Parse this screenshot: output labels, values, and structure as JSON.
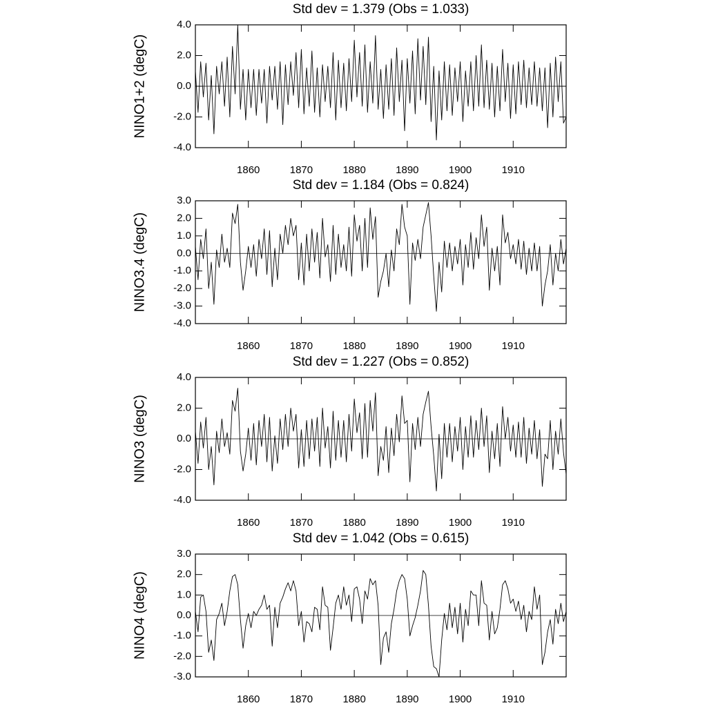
{
  "chart_data": [
    {
      "type": "line",
      "title": "Std dev = 1.379 (Obs = 1.033)",
      "ylabel": "NINO1+2 (degC)",
      "x": [
        1850,
        1850.5,
        1851,
        1851.5,
        1852,
        1852.5,
        1853,
        1853.5,
        1854,
        1854.5,
        1855,
        1855.5,
        1856,
        1856.5,
        1857,
        1857.5,
        1858,
        1858.5,
        1859,
        1859.5,
        1860,
        1860.5,
        1861,
        1861.5,
        1862,
        1862.5,
        1863,
        1863.5,
        1864,
        1864.5,
        1865,
        1865.5,
        1866,
        1866.5,
        1867,
        1867.5,
        1868,
        1868.5,
        1869,
        1869.5,
        1870,
        1870.5,
        1871,
        1871.5,
        1872,
        1872.5,
        1873,
        1873.5,
        1874,
        1874.5,
        1875,
        1875.5,
        1876,
        1876.5,
        1877,
        1877.5,
        1878,
        1878.5,
        1879,
        1879.5,
        1880,
        1880.5,
        1881,
        1881.5,
        1882,
        1882.5,
        1883,
        1883.5,
        1884,
        1884.5,
        1885,
        1885.5,
        1886,
        1886.5,
        1887,
        1887.5,
        1888,
        1888.5,
        1889,
        1889.5,
        1890,
        1890.5,
        1891,
        1891.5,
        1892,
        1892.5,
        1893,
        1893.5,
        1894,
        1894.5,
        1895,
        1895.5,
        1896,
        1896.5,
        1897,
        1897.5,
        1898,
        1898.5,
        1899,
        1899.5,
        1900,
        1900.5,
        1901,
        1901.5,
        1902,
        1902.5,
        1903,
        1903.5,
        1904,
        1904.5,
        1905,
        1905.5,
        1906,
        1906.5,
        1907,
        1907.5,
        1908,
        1908.5,
        1909,
        1909.5,
        1910,
        1910.5,
        1911,
        1911.5,
        1912,
        1912.5,
        1913,
        1913.5,
        1914,
        1914.5,
        1915,
        1915.5,
        1916,
        1916.5,
        1917,
        1917.5,
        1918,
        1918.5,
        1919,
        1919.5,
        1920
      ],
      "values": [
        1.0,
        -1.7,
        1.6,
        -0.7,
        1.5,
        -2.2,
        0.7,
        -3.1,
        1.3,
        -0.5,
        1.6,
        -1.3,
        1.9,
        -2.0,
        2.6,
        -0.5,
        4.0,
        -1.5,
        1.1,
        -2.2,
        1.1,
        -1.4,
        1.1,
        -1.9,
        1.1,
        -1.1,
        1.1,
        -2.4,
        1.3,
        -0.9,
        1.3,
        -1.5,
        1.6,
        -2.5,
        1.4,
        -1.2,
        1.6,
        -0.6,
        2.2,
        -1.4,
        2.4,
        -1.8,
        1.2,
        -1.3,
        2.3,
        -1.7,
        1.2,
        -2.0,
        1.4,
        -1.0,
        1.3,
        -1.4,
        2.2,
        -2.2,
        1.7,
        -1.4,
        1.5,
        -1.6,
        1.8,
        -1.0,
        3.0,
        -0.7,
        2.2,
        -1.3,
        2.7,
        -1.7,
        1.6,
        -1.1,
        3.3,
        -1.5,
        1.1,
        -2.1,
        1.4,
        -1.5,
        1.8,
        -1.9,
        2.5,
        -1.0,
        1.7,
        -2.9,
        1.8,
        -1.1,
        2.3,
        -1.8,
        3.1,
        -0.9,
        2.6,
        -1.2,
        3.2,
        -2.3,
        1.3,
        -3.5,
        1.0,
        -2.2,
        1.6,
        -1.6,
        1.4,
        -1.9,
        1.2,
        -1.0,
        1.6,
        -2.3,
        1.0,
        -1.3,
        1.6,
        -1.6,
        2.0,
        -1.3,
        2.7,
        -1.4,
        1.7,
        -1.5,
        1.5,
        -2.0,
        1.3,
        -1.6,
        2.4,
        -1.0,
        1.5,
        -2.1,
        1.4,
        -1.8,
        1.6,
        -1.2,
        1.7,
        -1.4,
        1.2,
        -1.2,
        1.6,
        -1.3,
        1.2,
        -1.6,
        1.2,
        -2.7,
        1.5,
        -2.0,
        1.9,
        -1.0,
        1.6,
        -2.4,
        -2.0
      ],
      "color": "#000000",
      "xlim": [
        1850,
        1920
      ],
      "xticks": [
        1860,
        1870,
        1880,
        1890,
        1900,
        1910
      ],
      "ylim": [
        -4,
        4
      ],
      "yticks": [
        {
          "value": -4,
          "label": "-4.0"
        },
        {
          "value": -2,
          "label": "-2.0"
        },
        {
          "value": 0,
          "label": "0.0"
        },
        {
          "value": 2,
          "label": "2.0"
        },
        {
          "value": 4,
          "label": "4.0"
        }
      ],
      "zero_line": true
    },
    {
      "type": "line",
      "title": "Std dev = 1.184 (Obs = 0.824)",
      "ylabel": "NINO3.4 (degC)",
      "x": [
        1850,
        1850.5,
        1851,
        1851.5,
        1852,
        1852.5,
        1853,
        1853.5,
        1854,
        1854.5,
        1855,
        1855.5,
        1856,
        1856.5,
        1857,
        1857.5,
        1858,
        1858.5,
        1859,
        1859.5,
        1860,
        1860.5,
        1861,
        1861.5,
        1862,
        1862.5,
        1863,
        1863.5,
        1864,
        1864.5,
        1865,
        1865.5,
        1866,
        1866.5,
        1867,
        1867.5,
        1868,
        1868.5,
        1869,
        1869.5,
        1870,
        1870.5,
        1871,
        1871.5,
        1872,
        1872.5,
        1873,
        1873.5,
        1874,
        1874.5,
        1875,
        1875.5,
        1876,
        1876.5,
        1877,
        1877.5,
        1878,
        1878.5,
        1879,
        1879.5,
        1880,
        1880.5,
        1881,
        1881.5,
        1882,
        1882.5,
        1883,
        1883.5,
        1884,
        1884.5,
        1885,
        1885.5,
        1886,
        1886.5,
        1887,
        1887.5,
        1888,
        1888.5,
        1889,
        1889.5,
        1890,
        1890.5,
        1891,
        1891.5,
        1892,
        1892.5,
        1893,
        1893.5,
        1894,
        1894.5,
        1895,
        1895.5,
        1896,
        1896.5,
        1897,
        1897.5,
        1898,
        1898.5,
        1899,
        1899.5,
        1900,
        1900.5,
        1901,
        1901.5,
        1902,
        1902.5,
        1903,
        1903.5,
        1904,
        1904.5,
        1905,
        1905.5,
        1906,
        1906.5,
        1907,
        1907.5,
        1908,
        1908.5,
        1909,
        1909.5,
        1910,
        1910.5,
        1911,
        1911.5,
        1912,
        1912.5,
        1913,
        1913.5,
        1914,
        1914.5,
        1915,
        1915.5,
        1916,
        1916.5,
        1917,
        1917.5,
        1918,
        1918.5,
        1919,
        1919.5,
        1920
      ],
      "values": [
        0.4,
        -1.5,
        0.8,
        -0.3,
        1.4,
        -2.0,
        -0.5,
        -2.9,
        0.2,
        -0.8,
        1.1,
        -0.5,
        0.3,
        -0.8,
        2.3,
        1.7,
        2.8,
        -0.5,
        -2.1,
        -1.0,
        0.4,
        -0.8,
        0.5,
        -1.3,
        0.8,
        -0.3,
        1.4,
        -1.2,
        1.3,
        -1.9,
        0.3,
        -1.5,
        1.1,
        0.0,
        1.6,
        0.5,
        2.0,
        1.0,
        1.6,
        -1.5,
        0.6,
        -1.8,
        1.1,
        -1.0,
        1.4,
        -0.5,
        1.2,
        -1.4,
        2.0,
        -0.2,
        0.5,
        -1.6,
        1.6,
        -1.2,
        1.1,
        -0.8,
        0.5,
        -1.0,
        1.5,
        -1.3,
        2.2,
        0.7,
        1.6,
        -1.0,
        2.0,
        -0.8,
        2.6,
        0.8,
        2.1,
        -2.5,
        -1.6,
        -1.0,
        0.0,
        -1.9,
        0.2,
        -1.0,
        1.4,
        0.5,
        2.8,
        1.5,
        1.0,
        -2.9,
        0.6,
        -0.4,
        0.8,
        -0.3,
        1.5,
        2.2,
        2.9,
        1.0,
        -1.3,
        -3.3,
        -0.5,
        -2.2,
        0.7,
        -0.8,
        0.6,
        -1.0,
        0.4,
        -0.6,
        0.8,
        -1.8,
        0.5,
        -0.8,
        1.2,
        -0.9,
        0.9,
        -0.3,
        2.2,
        0.4,
        1.5,
        -2.1,
        0.3,
        -1.0,
        0.4,
        -1.8,
        2.2,
        0.6,
        1.2,
        -0.3,
        0.5,
        -0.6,
        0.8,
        -0.9,
        0.7,
        -1.2,
        0.3,
        -1.0,
        0.6,
        -1.0,
        0.4,
        -3.0,
        -1.8,
        -1.0,
        0.5,
        -1.8,
        0.0,
        -1.0,
        0.8,
        -0.6,
        0.3
      ],
      "color": "#000000",
      "xlim": [
        1850,
        1920
      ],
      "xticks": [
        1860,
        1870,
        1880,
        1890,
        1900,
        1910
      ],
      "ylim": [
        -4,
        3
      ],
      "yticks": [
        {
          "value": -4,
          "label": "-4.0"
        },
        {
          "value": -3,
          "label": "-3.0"
        },
        {
          "value": -2,
          "label": "-2.0"
        },
        {
          "value": -1,
          "label": "-1.0"
        },
        {
          "value": 0,
          "label": "0.0"
        },
        {
          "value": 1,
          "label": "1.0"
        },
        {
          "value": 2,
          "label": "2.0"
        },
        {
          "value": 3,
          "label": "3.0"
        }
      ],
      "zero_line": true
    },
    {
      "type": "line",
      "title": "Std dev = 1.227 (Obs = 0.852)",
      "ylabel": "NINO3 (degC)",
      "x": [
        1850,
        1850.5,
        1851,
        1851.5,
        1852,
        1852.5,
        1853,
        1853.5,
        1854,
        1854.5,
        1855,
        1855.5,
        1856,
        1856.5,
        1857,
        1857.5,
        1858,
        1858.5,
        1859,
        1859.5,
        1860,
        1860.5,
        1861,
        1861.5,
        1862,
        1862.5,
        1863,
        1863.5,
        1864,
        1864.5,
        1865,
        1865.5,
        1866,
        1866.5,
        1867,
        1867.5,
        1868,
        1868.5,
        1869,
        1869.5,
        1870,
        1870.5,
        1871,
        1871.5,
        1872,
        1872.5,
        1873,
        1873.5,
        1874,
        1874.5,
        1875,
        1875.5,
        1876,
        1876.5,
        1877,
        1877.5,
        1878,
        1878.5,
        1879,
        1879.5,
        1880,
        1880.5,
        1881,
        1881.5,
        1882,
        1882.5,
        1883,
        1883.5,
        1884,
        1884.5,
        1885,
        1885.5,
        1886,
        1886.5,
        1887,
        1887.5,
        1888,
        1888.5,
        1889,
        1889.5,
        1890,
        1890.5,
        1891,
        1891.5,
        1892,
        1892.5,
        1893,
        1893.5,
        1894,
        1894.5,
        1895,
        1895.5,
        1896,
        1896.5,
        1897,
        1897.5,
        1898,
        1898.5,
        1899,
        1899.5,
        1900,
        1900.5,
        1901,
        1901.5,
        1902,
        1902.5,
        1903,
        1903.5,
        1904,
        1904.5,
        1905,
        1905.5,
        1906,
        1906.5,
        1907,
        1907.5,
        1908,
        1908.5,
        1909,
        1909.5,
        1910,
        1910.5,
        1911,
        1911.5,
        1912,
        1912.5,
        1913,
        1913.5,
        1914,
        1914.5,
        1915,
        1915.5,
        1916,
        1916.5,
        1917,
        1917.5,
        1918,
        1918.5,
        1919,
        1919.5,
        1920
      ],
      "values": [
        0.5,
        -1.6,
        1.1,
        -0.6,
        1.4,
        -2.0,
        -0.5,
        -3.0,
        0.5,
        -0.9,
        1.3,
        -0.5,
        0.4,
        -1.0,
        2.5,
        1.8,
        3.3,
        -0.8,
        -2.1,
        -1.0,
        0.7,
        -1.4,
        1.0,
        -1.7,
        1.2,
        -0.5,
        1.6,
        -1.5,
        1.4,
        -2.1,
        0.2,
        -1.6,
        1.3,
        -0.7,
        1.6,
        -0.5,
        2.0,
        0.5,
        1.6,
        -1.9,
        0.6,
        -1.8,
        1.2,
        -1.3,
        1.3,
        -0.8,
        1.4,
        -1.8,
        2.0,
        -0.6,
        0.8,
        -1.9,
        1.8,
        -1.4,
        1.2,
        -1.2,
        1.2,
        -1.5,
        1.6,
        -0.8,
        2.6,
        0.4,
        1.7,
        -1.3,
        2.3,
        -1.2,
        2.5,
        0.5,
        3.0,
        -2.4,
        -0.5,
        -1.4,
        0.8,
        -2.2,
        0.7,
        -1.1,
        1.6,
        -0.2,
        2.8,
        1.0,
        1.2,
        -2.8,
        1.0,
        -0.7,
        1.4,
        -0.5,
        1.6,
        2.4,
        3.1,
        0.8,
        -1.1,
        -3.4,
        0.3,
        -2.6,
        1.0,
        -1.2,
        1.0,
        -1.5,
        0.8,
        -0.8,
        1.4,
        -2.0,
        0.8,
        -1.2,
        1.5,
        -1.2,
        1.2,
        -0.7,
        2.0,
        -0.5,
        1.5,
        -2.2,
        0.5,
        -1.3,
        1.0,
        -1.8,
        2.1,
        0.0,
        1.4,
        -0.8,
        0.9,
        -1.2,
        1.1,
        -1.2,
        1.4,
        -1.6,
        0.7,
        -1.0,
        1.2,
        -1.3,
        0.6,
        -3.1,
        -1.0,
        -1.3,
        1.2,
        -2.0,
        0.5,
        -1.0,
        1.3,
        -0.9,
        -2.3
      ],
      "color": "#000000",
      "xlim": [
        1850,
        1920
      ],
      "xticks": [
        1860,
        1870,
        1880,
        1890,
        1900,
        1910
      ],
      "ylim": [
        -4,
        4
      ],
      "yticks": [
        {
          "value": -4,
          "label": "-4.0"
        },
        {
          "value": -2,
          "label": "-2.0"
        },
        {
          "value": 0,
          "label": "0.0"
        },
        {
          "value": 2,
          "label": "2.0"
        },
        {
          "value": 4,
          "label": "4.0"
        }
      ],
      "zero_line": true
    },
    {
      "type": "line",
      "title": "Std dev = 1.042 (Obs = 0.615)",
      "ylabel": "NINO4 (degC)",
      "x": [
        1850,
        1850.5,
        1851,
        1851.5,
        1852,
        1852.5,
        1853,
        1853.5,
        1854,
        1854.5,
        1855,
        1855.5,
        1856,
        1856.5,
        1857,
        1857.5,
        1858,
        1858.5,
        1859,
        1859.5,
        1860,
        1860.5,
        1861,
        1861.5,
        1862,
        1862.5,
        1863,
        1863.5,
        1864,
        1864.5,
        1865,
        1865.5,
        1866,
        1866.5,
        1867,
        1867.5,
        1868,
        1868.5,
        1869,
        1869.5,
        1870,
        1870.5,
        1871,
        1871.5,
        1872,
        1872.5,
        1873,
        1873.5,
        1874,
        1874.5,
        1875,
        1875.5,
        1876,
        1876.5,
        1877,
        1877.5,
        1878,
        1878.5,
        1879,
        1879.5,
        1880,
        1880.5,
        1881,
        1881.5,
        1882,
        1882.5,
        1883,
        1883.5,
        1884,
        1884.5,
        1885,
        1885.5,
        1886,
        1886.5,
        1887,
        1887.5,
        1888,
        1888.5,
        1889,
        1889.5,
        1890,
        1890.5,
        1891,
        1891.5,
        1892,
        1892.5,
        1893,
        1893.5,
        1894,
        1894.5,
        1895,
        1895.5,
        1896,
        1896.5,
        1897,
        1897.5,
        1898,
        1898.5,
        1899,
        1899.5,
        1900,
        1900.5,
        1901,
        1901.5,
        1902,
        1902.5,
        1903,
        1903.5,
        1904,
        1904.5,
        1905,
        1905.5,
        1906,
        1906.5,
        1907,
        1907.5,
        1908,
        1908.5,
        1909,
        1909.5,
        1910,
        1910.5,
        1911,
        1911.5,
        1912,
        1912.5,
        1913,
        1913.5,
        1914,
        1914.5,
        1915,
        1915.5,
        1916,
        1916.5,
        1917,
        1917.5,
        1918,
        1918.5,
        1919,
        1919.5,
        1920
      ],
      "values": [
        0.2,
        -0.8,
        0.9,
        1.0,
        0.2,
        -1.8,
        -1.2,
        -2.2,
        -0.2,
        0.1,
        0.6,
        -0.5,
        0.2,
        1.2,
        1.9,
        2.0,
        1.5,
        -0.2,
        -1.6,
        -0.5,
        0.1,
        -0.6,
        0.2,
        0.0,
        0.3,
        0.5,
        1.0,
        0.3,
        0.5,
        -1.5,
        0.4,
        -0.6,
        0.6,
        0.9,
        1.3,
        1.6,
        1.2,
        1.7,
        1.2,
        -0.5,
        0.2,
        -1.3,
        -0.3,
        -0.4,
        -0.8,
        0.4,
        0.3,
        -0.7,
        1.4,
        0.5,
        0.4,
        -1.7,
        -0.6,
        0.6,
        1.0,
        0.3,
        1.4,
        0.5,
        1.0,
        -0.3,
        1.3,
        1.4,
        0.8,
        -0.4,
        1.2,
        0.8,
        1.8,
        1.5,
        1.7,
        0.5,
        -2.4,
        -1.1,
        -0.8,
        -1.8,
        -0.4,
        0.3,
        1.2,
        1.7,
        2.0,
        1.8,
        0.8,
        -1.0,
        -0.5,
        -0.1,
        0.5,
        1.2,
        2.2,
        2.0,
        0.5,
        -1.5,
        -2.5,
        -2.6,
        -3.0,
        -1.2,
        0.1,
        -0.7,
        0.6,
        -0.6,
        0.4,
        -0.9,
        0.6,
        -1.3,
        0.3,
        -0.5,
        1.2,
        1.0,
        1.0,
        -0.5,
        1.7,
        0.6,
        0.5,
        -1.2,
        0.2,
        -0.9,
        -0.6,
        0.3,
        1.5,
        1.7,
        1.3,
        0.6,
        0.8,
        0.2,
        0.7,
        -0.2,
        0.5,
        -0.8,
        0.2,
        -0.2,
        1.4,
        0.3,
        1.0,
        -2.4,
        -1.8,
        -0.8,
        -0.2,
        -1.4,
        0.3,
        -0.4,
        0.6,
        -0.3,
        0.2
      ],
      "color": "#000000",
      "xlim": [
        1850,
        1920
      ],
      "xticks": [
        1860,
        1870,
        1880,
        1890,
        1900,
        1910
      ],
      "ylim": [
        -3,
        3
      ],
      "yticks": [
        {
          "value": -3,
          "label": "-3.0"
        },
        {
          "value": -2,
          "label": "-2.0"
        },
        {
          "value": -1,
          "label": "-1.0"
        },
        {
          "value": 0,
          "label": "0.0"
        },
        {
          "value": 1,
          "label": "1.0"
        },
        {
          "value": 2,
          "label": "2.0"
        },
        {
          "value": 3,
          "label": "3.0"
        }
      ],
      "zero_line": true
    }
  ]
}
